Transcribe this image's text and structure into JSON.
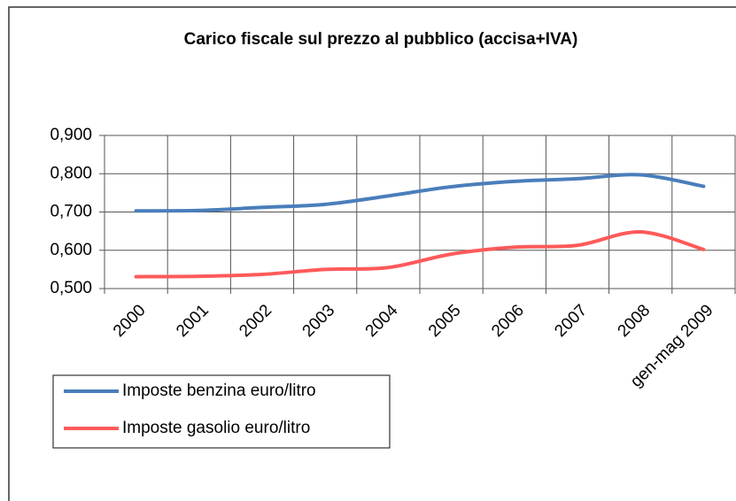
{
  "chart_data": {
    "type": "line",
    "title": "Carico fiscale sul prezzo al pubblico (accisa+IVA)",
    "categories": [
      "2000",
      "2001",
      "2002",
      "2003",
      "2004",
      "2005",
      "2006",
      "2007",
      "2008",
      "gen-mag 2009"
    ],
    "series": [
      {
        "name": "Imposte benzina euro/litro",
        "color": "#4a7ebb",
        "values": [
          0.703,
          0.704,
          0.712,
          0.72,
          0.742,
          0.766,
          0.78,
          0.787,
          0.797,
          0.767
        ]
      },
      {
        "name": "Imposte gasolio euro/litro",
        "color": "#ff5a5a",
        "values": [
          0.531,
          0.532,
          0.537,
          0.55,
          0.555,
          0.59,
          0.608,
          0.613,
          0.648,
          0.602
        ]
      }
    ],
    "ylim": [
      0.5,
      0.9
    ],
    "yticks": [
      {
        "value": 0.5,
        "label": "0,500"
      },
      {
        "value": 0.6,
        "label": "0,600"
      },
      {
        "value": 0.7,
        "label": "0,700"
      },
      {
        "value": 0.8,
        "label": "0,800"
      },
      {
        "value": 0.9,
        "label": "0,900"
      }
    ],
    "grid": true
  }
}
